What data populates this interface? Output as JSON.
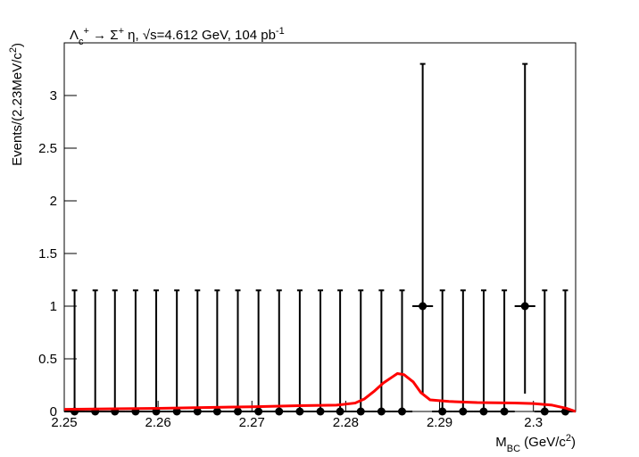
{
  "chart_data": {
    "type": "errorbar",
    "title": [
      {
        "text": "Λ"
      },
      {
        "text": "c",
        "shift": "sub"
      },
      {
        "text": "+",
        "shift": "sup"
      },
      {
        "text": " → Σ"
      },
      {
        "text": "+",
        "shift": "sup"
      },
      {
        "text": " η,    √s=4.612 GeV,    104 pb"
      },
      {
        "text": "-1",
        "shift": "sup"
      }
    ],
    "xlabel": [
      {
        "text": "M"
      },
      {
        "text": "BC",
        "shift": "sub"
      },
      {
        "text": " (GeV/c"
      },
      {
        "text": "2",
        "shift": "sup"
      },
      {
        "text": ")"
      }
    ],
    "ylabel": [
      {
        "text": "Events/(2.23MeV/c"
      },
      {
        "text": "2",
        "shift": "sup"
      },
      {
        "text": ")"
      }
    ],
    "xlim": [
      2.25,
      2.3045
    ],
    "ylim": [
      0,
      3.5
    ],
    "xticks": [
      2.25,
      2.26,
      2.27,
      2.28,
      2.29,
      2.3
    ],
    "yticks": [
      0,
      0.5,
      1,
      1.5,
      2,
      2.5,
      3
    ],
    "series": [
      {
        "type": "errorbar",
        "color": "#000000",
        "x": [
          2.2511,
          2.2533,
          2.2554,
          2.2576,
          2.2598,
          2.262,
          2.2642,
          2.2663,
          2.2685,
          2.2707,
          2.2729,
          2.2751,
          2.2773,
          2.2794,
          2.2816,
          2.2838,
          2.286,
          2.2882,
          2.2903,
          2.2925,
          2.2947,
          2.2969,
          2.2991,
          2.3012,
          2.3034
        ],
        "values": [
          0,
          0,
          0,
          0,
          0,
          0,
          0,
          0,
          0,
          0,
          0,
          0,
          0,
          0,
          0,
          0,
          0,
          1,
          0,
          0,
          0,
          0,
          1,
          0,
          0
        ],
        "errors_low": [
          0,
          0,
          0,
          0,
          0,
          0,
          0,
          0,
          0,
          0,
          0,
          0,
          0,
          0,
          0,
          0,
          0,
          0.83,
          0,
          0,
          0,
          0,
          0.83,
          0,
          0
        ],
        "errors_high": [
          1.15,
          1.15,
          1.15,
          1.15,
          1.15,
          1.15,
          1.15,
          1.15,
          1.15,
          1.15,
          1.15,
          1.15,
          1.15,
          1.15,
          1.15,
          1.15,
          1.15,
          2.3,
          1.15,
          1.15,
          1.15,
          1.15,
          2.3,
          1.15,
          1.15
        ],
        "xerr": 0.0011
      },
      {
        "type": "line",
        "color": "#ff0000",
        "x": [
          2.25,
          2.26,
          2.27,
          2.275,
          2.279,
          2.281,
          2.282,
          2.283,
          2.284,
          2.285,
          2.2855,
          2.2862,
          2.2872,
          2.288,
          2.289,
          2.291,
          2.294,
          2.298,
          2.3,
          2.302,
          2.3035,
          2.3045
        ],
        "values": [
          0.02,
          0.03,
          0.045,
          0.055,
          0.06,
          0.08,
          0.12,
          0.19,
          0.27,
          0.33,
          0.36,
          0.35,
          0.28,
          0.18,
          0.11,
          0.095,
          0.085,
          0.08,
          0.075,
          0.06,
          0.03,
          0.0
        ]
      }
    ]
  }
}
